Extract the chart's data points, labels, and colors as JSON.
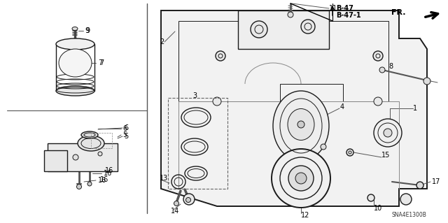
{
  "bg_color": "#ffffff",
  "line_color": "#1a1a1a",
  "label_color": "#000000",
  "thin_lw": 0.7,
  "med_lw": 1.0,
  "thick_lw": 1.4,
  "fig_w": 6.4,
  "fig_h": 3.19,
  "dpi": 100,
  "b47_text": "B-47\nB-47-1",
  "fr_text": "FR.",
  "code_text": "SNA4E1300B"
}
